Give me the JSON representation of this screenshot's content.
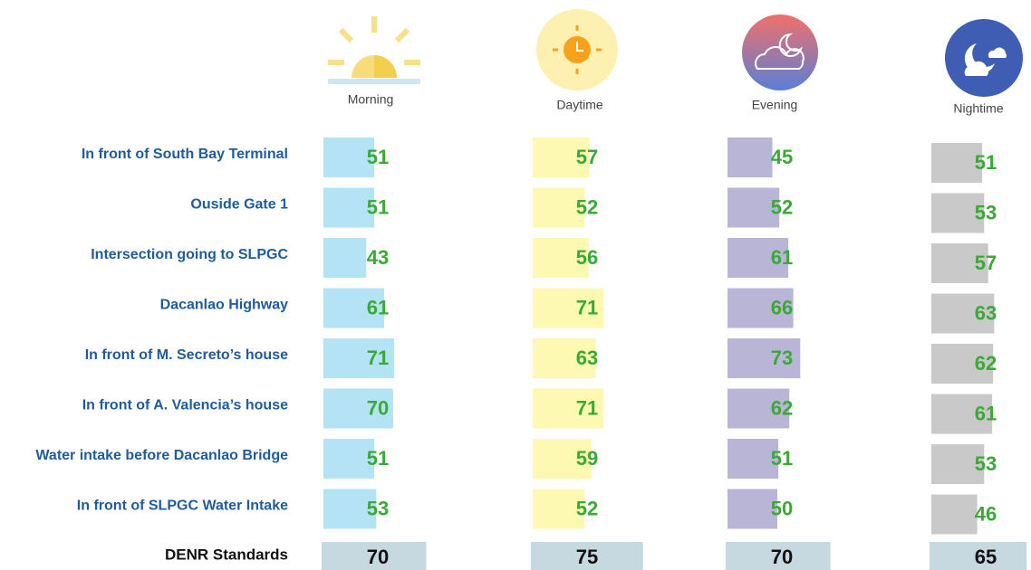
{
  "chart_data": {
    "type": "bar",
    "categories": [
      "In front of South Bay Terminal",
      "Ouside Gate 1",
      "Intersection going to SLPGC",
      "Dacanlao Highway",
      "In front of M. Secreto’s house",
      "In front of A. Valencia’s house",
      "Water intake before Dacanlao Bridge",
      "In front of SLPGC Water Intake"
    ],
    "series": [
      {
        "name": "Morning",
        "color": "#b3e3f5",
        "values": [
          51,
          51,
          43,
          61,
          71,
          70,
          51,
          53
        ]
      },
      {
        "name": "Daytime",
        "color": "#fdf8b2",
        "values": [
          57,
          52,
          56,
          71,
          63,
          71,
          59,
          52
        ]
      },
      {
        "name": "Evening",
        "color": "#b9b5d7",
        "values": [
          45,
          52,
          61,
          66,
          73,
          62,
          51,
          50
        ]
      },
      {
        "name": "Nightime",
        "color": "#c9c9c9",
        "values": [
          51,
          53,
          57,
          63,
          62,
          61,
          53,
          46
        ]
      }
    ],
    "standard": {
      "name": "DENR Standards",
      "color": "#c6d9e1",
      "values": [
        70,
        75,
        70,
        65
      ]
    },
    "value_color": "#3aaa35"
  }
}
